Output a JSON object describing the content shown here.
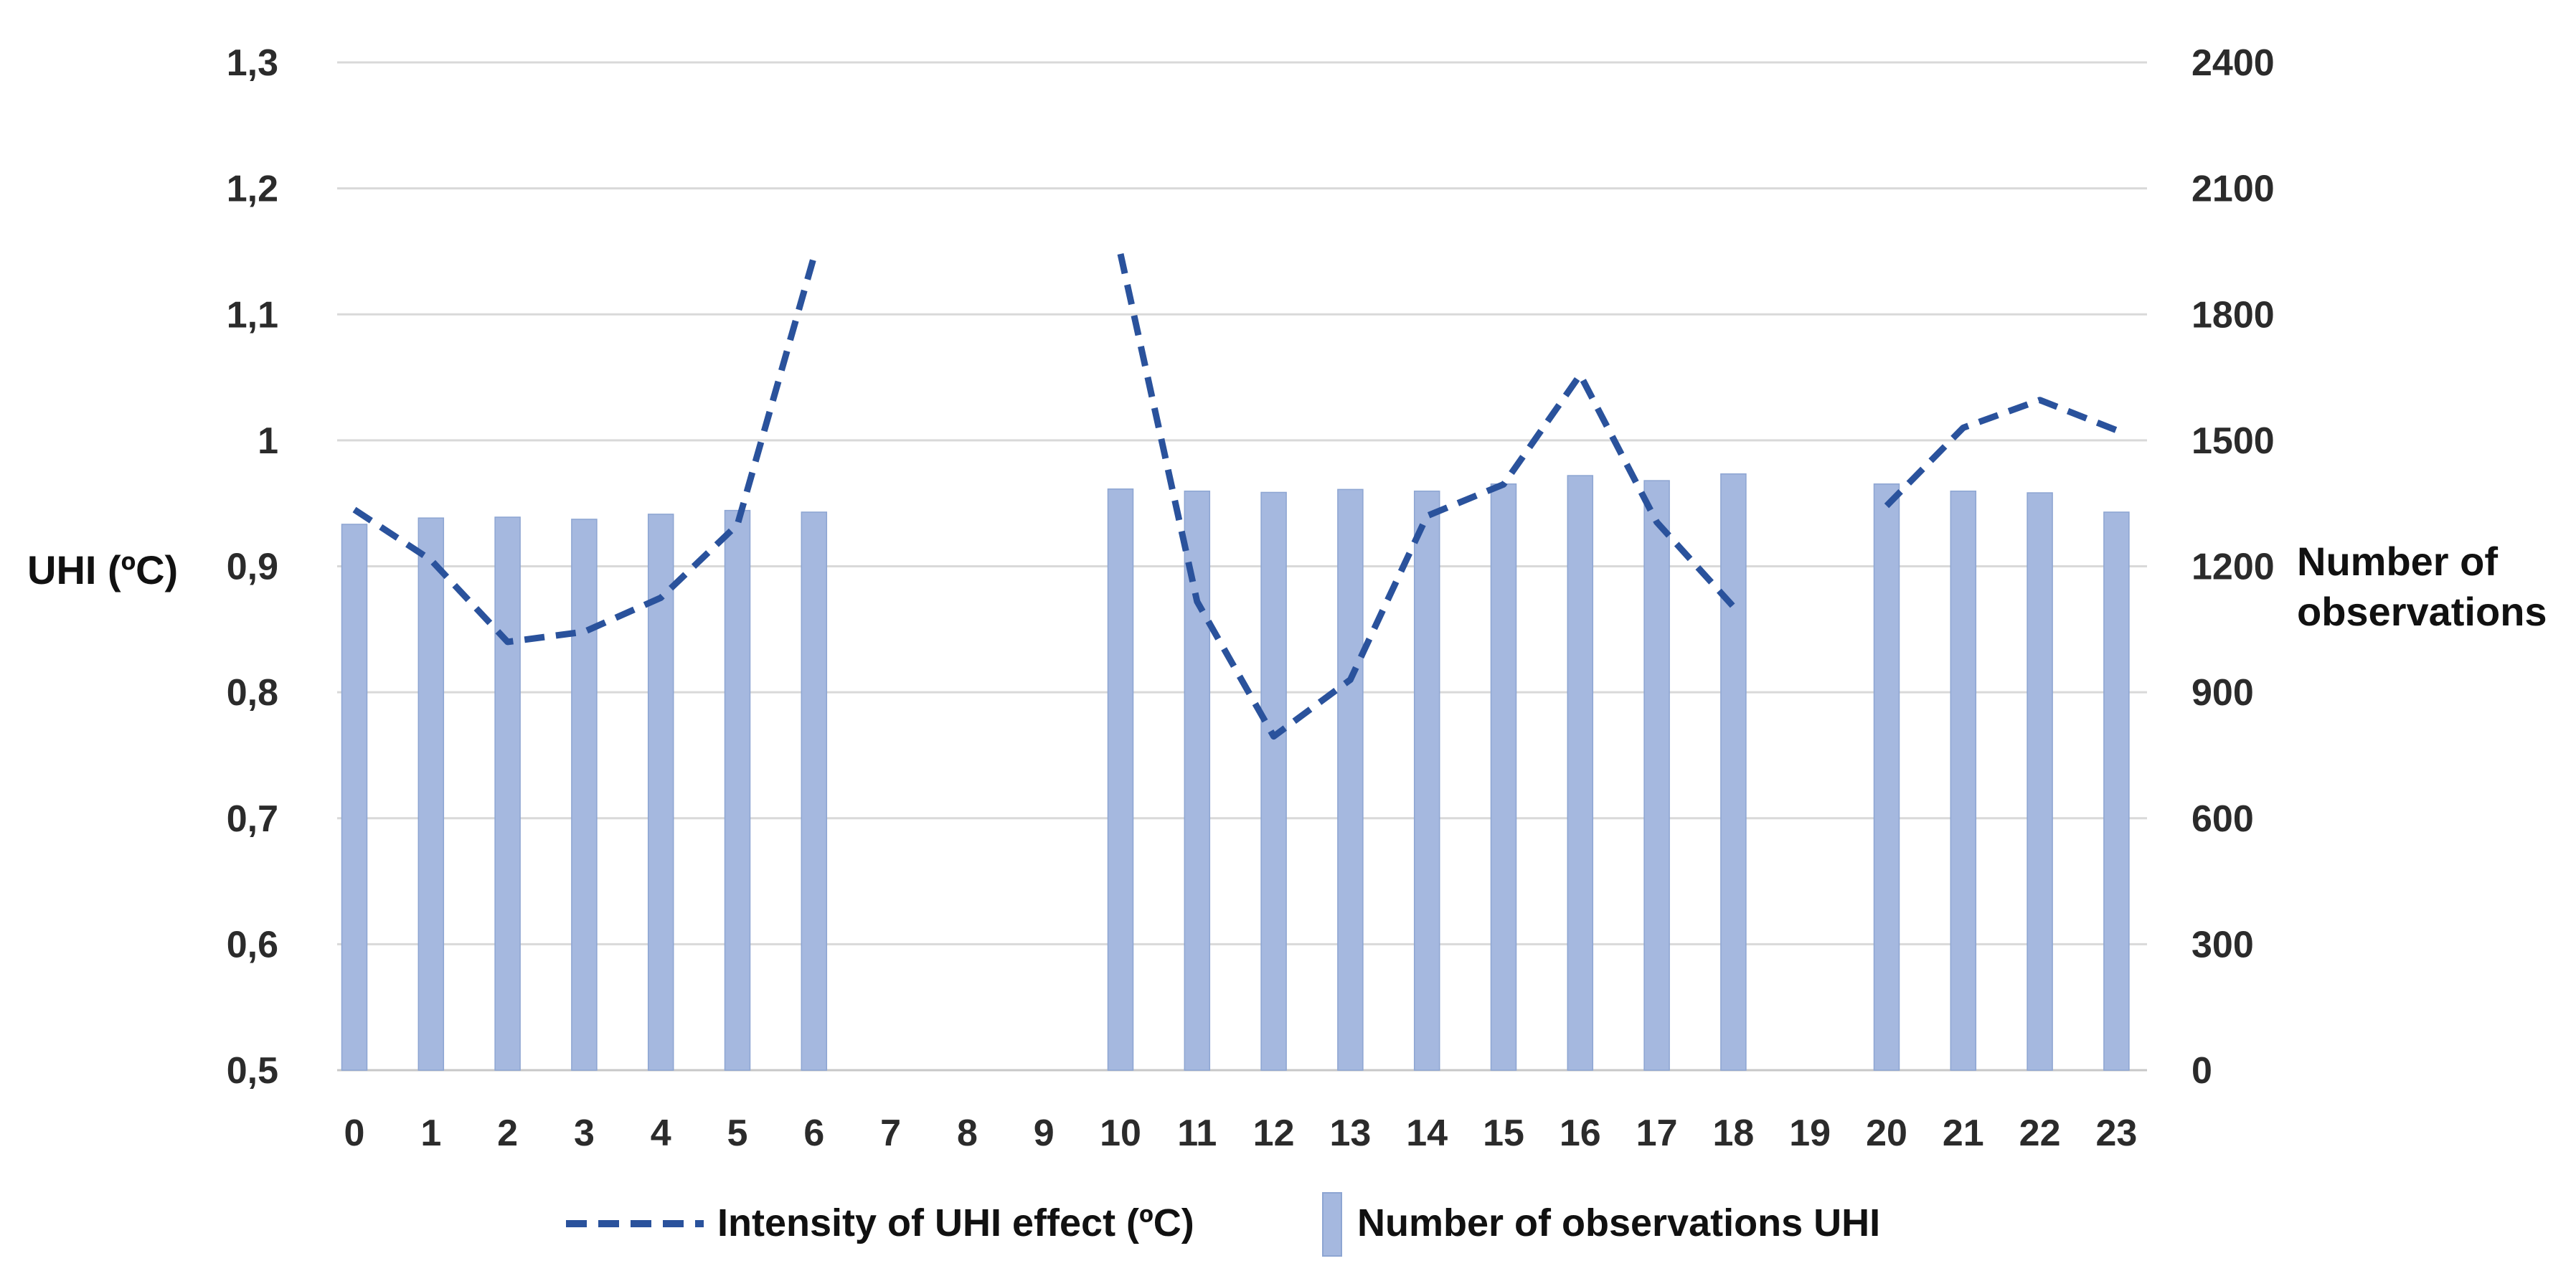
{
  "chart_data": {
    "type": "bar",
    "subtype": "dual-axis combo: dashed line (left axis) + column bars (right axis)",
    "title": "",
    "categories": [
      0,
      1,
      2,
      3,
      4,
      5,
      6,
      7,
      8,
      9,
      10,
      11,
      12,
      13,
      14,
      15,
      16,
      17,
      18,
      19,
      20,
      21,
      22,
      23
    ],
    "x_axis": {
      "tick_labels": [
        "0",
        "1",
        "2",
        "3",
        "4",
        "5",
        "6",
        "7",
        "8",
        "9",
        "10",
        "11",
        "12",
        "13",
        "14",
        "15",
        "16",
        "17",
        "18",
        "19",
        "20",
        "21",
        "22",
        "23"
      ]
    },
    "y_left_axis": {
      "label": "UHI (ºC)",
      "min": 0.5,
      "max": 1.3,
      "tick_step": 0.1,
      "tick_labels_top_to_bottom": [
        "1,3",
        "1,2",
        "1,1",
        "1",
        "0,9",
        "0,8",
        "0,7",
        "0,6",
        "0,5"
      ]
    },
    "y_right_axis": {
      "label": "Number of observations",
      "min": 0,
      "max": 2400,
      "tick_step": 300,
      "tick_labels_top_to_bottom": [
        "2400",
        "2100",
        "1800",
        "1500",
        "1200",
        "900",
        "600",
        "300",
        "0"
      ]
    },
    "grid": "horizontal only",
    "legend_position": "bottom",
    "series": [
      {
        "name": "Intensity of UHI effect (ºC)",
        "type": "line",
        "style": "dashed",
        "axis": "left",
        "color": "#2a529c",
        "values": [
          0.945,
          0.905,
          0.84,
          0.848,
          0.875,
          0.933,
          1.146,
          null,
          null,
          null,
          1.148,
          0.872,
          0.765,
          0.81,
          0.94,
          0.965,
          1.052,
          0.935,
          0.868,
          null,
          0.948,
          1.01,
          1.032,
          1.008
        ]
      },
      {
        "name": "Number of observations UHI",
        "type": "bar",
        "axis": "right",
        "color": "#a5b8df",
        "border_color": "#8da5d2",
        "values": [
          1300,
          1315,
          1317,
          1312,
          1324,
          1333,
          1329,
          null,
          null,
          null,
          1384,
          1379,
          1376,
          1383,
          1379,
          1396,
          1416,
          1404,
          1420,
          null,
          1396,
          1379,
          1375,
          1329
        ]
      }
    ]
  },
  "titles": {
    "y_left": "UHI (ºC)",
    "y_right_line1": "Number of",
    "y_right_line2": "observations"
  },
  "legend": {
    "items": [
      {
        "label": "Intensity of UHI effect  (ºC)"
      },
      {
        "label": "Number of observations UHI"
      }
    ]
  },
  "colors": {
    "background": "#ffffff",
    "gridline": "#d9d9d9",
    "baseline": "#c8c8c8",
    "tick_text": "#2b2b2b",
    "line_series": "#2a529c",
    "bar_fill": "#a5b8df",
    "bar_border": "#8da5d2"
  }
}
